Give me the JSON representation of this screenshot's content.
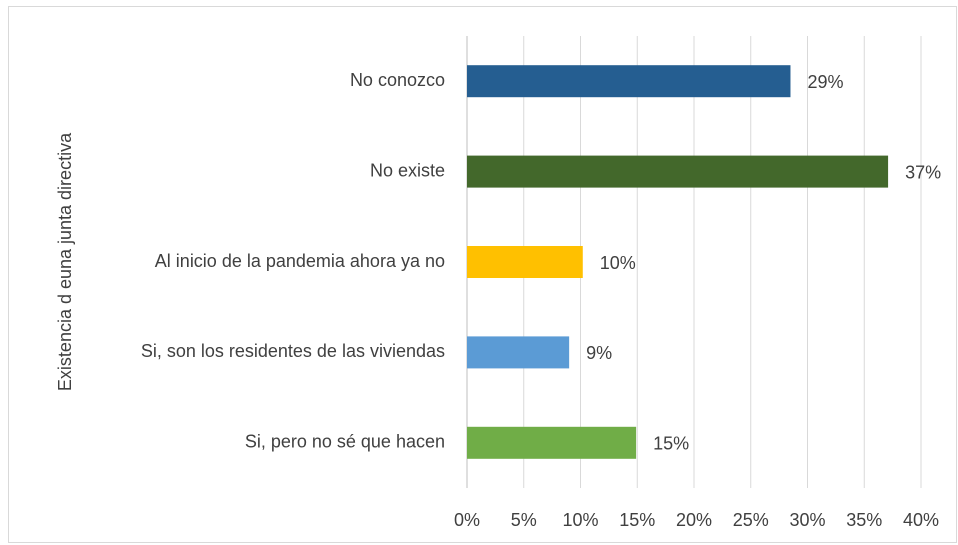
{
  "chart_data": {
    "type": "bar",
    "orientation": "horizontal",
    "y_axis_label": "Existencia d euna junta directiva",
    "categories": [
      "No conozco",
      "No existe",
      "Al inicio de la pandemia ahora ya no",
      "Si, son los residentes de las viviendas",
      "Si, pero no sé que hacen"
    ],
    "values": [
      28.5,
      37.1,
      10.2,
      9.0,
      14.9
    ],
    "value_labels": [
      "29%",
      "37%",
      "10%",
      "9%",
      "15%"
    ],
    "colors": [
      "#255e91",
      "#43682b",
      "#ffc000",
      "#5b9bd5",
      "#70ad47"
    ],
    "xlim": [
      0,
      40
    ],
    "xticks": [
      {
        "value": 0,
        "label": "0%"
      },
      {
        "value": 5,
        "label": "5%"
      },
      {
        "value": 10,
        "label": "10%"
      },
      {
        "value": 15,
        "label": "15%"
      },
      {
        "value": 20,
        "label": "20%"
      },
      {
        "value": 25,
        "label": "25%"
      },
      {
        "value": 30,
        "label": "30%"
      },
      {
        "value": 35,
        "label": "35%"
      },
      {
        "value": 40,
        "label": "40%"
      }
    ],
    "grid": true
  }
}
